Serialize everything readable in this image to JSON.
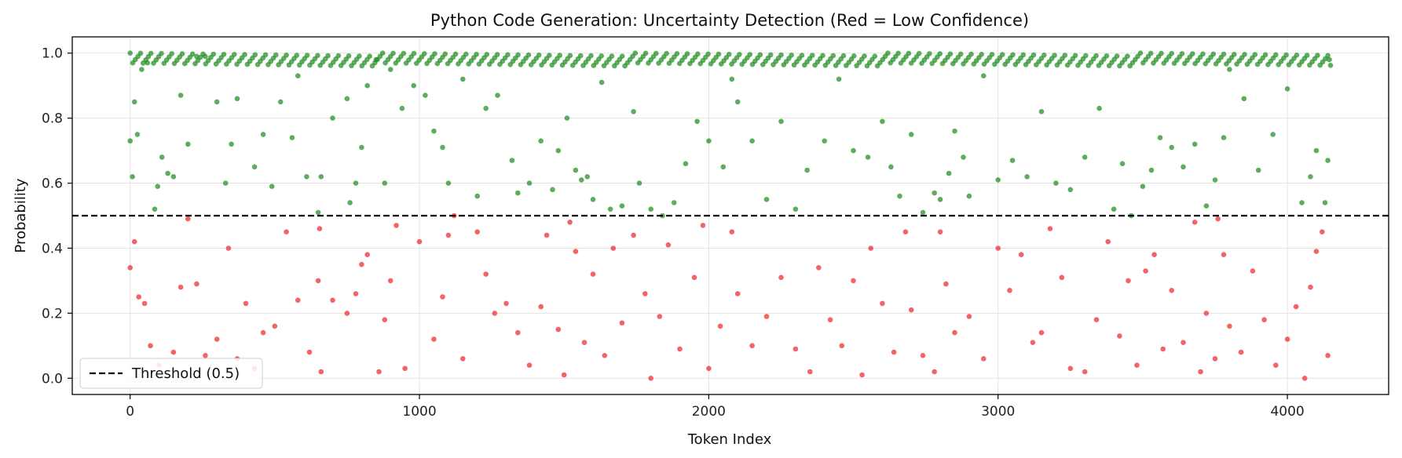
{
  "chart_data": {
    "type": "scatter",
    "title": "Python Code Generation: Uncertainty Detection (Red = Low Confidence)",
    "xlabel": "Token Index",
    "ylabel": "Probability",
    "xlim": [
      -200,
      4350
    ],
    "ylim": [
      -0.05,
      1.05
    ],
    "xticks": [
      0,
      1000,
      2000,
      3000,
      4000
    ],
    "xtick_labels": [
      "0",
      "1000",
      "2000",
      "3000",
      "4000"
    ],
    "yticks": [
      0.0,
      0.2,
      0.4,
      0.6,
      0.8,
      1.0
    ],
    "ytick_labels": [
      "0.0",
      "0.2",
      "0.4",
      "0.6",
      "0.8",
      "1.0"
    ],
    "grid": true,
    "threshold": {
      "value": 0.5,
      "label": "Threshold (0.5)",
      "style": "dashed",
      "color": "#000000"
    },
    "legend": {
      "position": "lower-left",
      "entries": [
        "Threshold (0.5)"
      ]
    },
    "colors": {
      "high": "#1a8a1a",
      "low": "#ee2222"
    },
    "token_count": 4150,
    "series": [
      {
        "name": "",
        "color": "#1a8a1a",
        "points": [
          [
            0,
            0.73
          ],
          [
            8,
            0.62
          ],
          [
            15,
            0.85
          ],
          [
            25,
            0.75
          ],
          [
            40,
            0.95
          ],
          [
            60,
            0.97
          ],
          [
            85,
            0.52
          ],
          [
            95,
            0.59
          ],
          [
            110,
            0.68
          ],
          [
            130,
            0.63
          ],
          [
            150,
            0.62
          ],
          [
            175,
            0.87
          ],
          [
            200,
            0.72
          ],
          [
            230,
            0.99
          ],
          [
            260,
            0.99
          ],
          [
            300,
            0.85
          ],
          [
            330,
            0.6
          ],
          [
            350,
            0.72
          ],
          [
            370,
            0.86
          ],
          [
            430,
            0.65
          ],
          [
            460,
            0.75
          ],
          [
            490,
            0.59
          ],
          [
            520,
            0.85
          ],
          [
            560,
            0.74
          ],
          [
            580,
            0.93
          ],
          [
            610,
            0.62
          ],
          [
            650,
            0.51
          ],
          [
            660,
            0.62
          ],
          [
            700,
            0.8
          ],
          [
            750,
            0.86
          ],
          [
            760,
            0.54
          ],
          [
            780,
            0.6
          ],
          [
            800,
            0.71
          ],
          [
            820,
            0.9
          ],
          [
            850,
            0.98
          ],
          [
            880,
            0.6
          ],
          [
            900,
            0.95
          ],
          [
            940,
            0.83
          ],
          [
            980,
            0.9
          ],
          [
            1020,
            0.87
          ],
          [
            1050,
            0.76
          ],
          [
            1080,
            0.71
          ],
          [
            1100,
            0.6
          ],
          [
            1150,
            0.92
          ],
          [
            1200,
            0.56
          ],
          [
            1230,
            0.83
          ],
          [
            1270,
            0.87
          ],
          [
            1320,
            0.67
          ],
          [
            1340,
            0.57
          ],
          [
            1380,
            0.6
          ],
          [
            1420,
            0.73
          ],
          [
            1460,
            0.58
          ],
          [
            1480,
            0.7
          ],
          [
            1510,
            0.8
          ],
          [
            1540,
            0.64
          ],
          [
            1560,
            0.61
          ],
          [
            1580,
            0.62
          ],
          [
            1600,
            0.55
          ],
          [
            1630,
            0.91
          ],
          [
            1660,
            0.52
          ],
          [
            1700,
            0.53
          ],
          [
            1740,
            0.82
          ],
          [
            1760,
            0.6
          ],
          [
            1800,
            0.52
          ],
          [
            1840,
            0.5
          ],
          [
            1880,
            0.54
          ],
          [
            1920,
            0.66
          ],
          [
            1960,
            0.79
          ],
          [
            2000,
            0.73
          ],
          [
            2050,
            0.65
          ],
          [
            2080,
            0.92
          ],
          [
            2100,
            0.85
          ],
          [
            2150,
            0.73
          ],
          [
            2200,
            0.55
          ],
          [
            2250,
            0.79
          ],
          [
            2300,
            0.52
          ],
          [
            2340,
            0.64
          ],
          [
            2400,
            0.73
          ],
          [
            2450,
            0.92
          ],
          [
            2500,
            0.7
          ],
          [
            2550,
            0.68
          ],
          [
            2600,
            0.79
          ],
          [
            2630,
            0.65
          ],
          [
            2660,
            0.56
          ],
          [
            2700,
            0.75
          ],
          [
            2740,
            0.51
          ],
          [
            2780,
            0.57
          ],
          [
            2800,
            0.55
          ],
          [
            2830,
            0.63
          ],
          [
            2850,
            0.76
          ],
          [
            2880,
            0.68
          ],
          [
            2900,
            0.56
          ],
          [
            2950,
            0.93
          ],
          [
            3000,
            0.61
          ],
          [
            3050,
            0.67
          ],
          [
            3100,
            0.62
          ],
          [
            3150,
            0.82
          ],
          [
            3200,
            0.6
          ],
          [
            3250,
            0.58
          ],
          [
            3300,
            0.68
          ],
          [
            3350,
            0.83
          ],
          [
            3400,
            0.52
          ],
          [
            3430,
            0.66
          ],
          [
            3460,
            0.5
          ],
          [
            3500,
            0.59
          ],
          [
            3530,
            0.64
          ],
          [
            3560,
            0.74
          ],
          [
            3600,
            0.71
          ],
          [
            3640,
            0.65
          ],
          [
            3680,
            0.72
          ],
          [
            3720,
            0.53
          ],
          [
            3750,
            0.61
          ],
          [
            3780,
            0.74
          ],
          [
            3800,
            0.95
          ],
          [
            3850,
            0.86
          ],
          [
            3900,
            0.64
          ],
          [
            3950,
            0.75
          ],
          [
            4000,
            0.89
          ],
          [
            4050,
            0.54
          ],
          [
            4080,
            0.62
          ],
          [
            4100,
            0.7
          ],
          [
            4130,
            0.54
          ],
          [
            4140,
            0.67
          ],
          [
            4145,
            0.98
          ]
        ]
      },
      {
        "name": "",
        "color": "#ee2222",
        "points": [
          [
            0,
            0.34
          ],
          [
            15,
            0.42
          ],
          [
            30,
            0.25
          ],
          [
            50,
            0.23
          ],
          [
            70,
            0.1
          ],
          [
            100,
            0.04
          ],
          [
            150,
            0.08
          ],
          [
            175,
            0.28
          ],
          [
            200,
            0.49
          ],
          [
            230,
            0.29
          ],
          [
            260,
            0.07
          ],
          [
            300,
            0.12
          ],
          [
            340,
            0.4
          ],
          [
            370,
            0.06
          ],
          [
            400,
            0.23
          ],
          [
            430,
            0.03
          ],
          [
            460,
            0.14
          ],
          [
            500,
            0.16
          ],
          [
            540,
            0.45
          ],
          [
            580,
            0.24
          ],
          [
            620,
            0.08
          ],
          [
            650,
            0.3
          ],
          [
            655,
            0.46
          ],
          [
            660,
            0.02
          ],
          [
            700,
            0.24
          ],
          [
            750,
            0.2
          ],
          [
            780,
            0.26
          ],
          [
            800,
            0.35
          ],
          [
            820,
            0.38
          ],
          [
            860,
            0.02
          ],
          [
            880,
            0.18
          ],
          [
            900,
            0.3
          ],
          [
            920,
            0.47
          ],
          [
            950,
            0.03
          ],
          [
            1000,
            0.42
          ],
          [
            1050,
            0.12
          ],
          [
            1080,
            0.25
          ],
          [
            1100,
            0.44
          ],
          [
            1120,
            0.5
          ],
          [
            1150,
            0.06
          ],
          [
            1200,
            0.45
          ],
          [
            1230,
            0.32
          ],
          [
            1260,
            0.2
          ],
          [
            1300,
            0.23
          ],
          [
            1340,
            0.14
          ],
          [
            1380,
            0.04
          ],
          [
            1420,
            0.22
          ],
          [
            1440,
            0.44
          ],
          [
            1480,
            0.15
          ],
          [
            1500,
            0.01
          ],
          [
            1520,
            0.48
          ],
          [
            1540,
            0.39
          ],
          [
            1570,
            0.11
          ],
          [
            1600,
            0.32
          ],
          [
            1640,
            0.07
          ],
          [
            1670,
            0.4
          ],
          [
            1700,
            0.17
          ],
          [
            1740,
            0.44
          ],
          [
            1780,
            0.26
          ],
          [
            1800,
            0.0
          ],
          [
            1830,
            0.19
          ],
          [
            1860,
            0.41
          ],
          [
            1900,
            0.09
          ],
          [
            1950,
            0.31
          ],
          [
            1980,
            0.47
          ],
          [
            2000,
            0.03
          ],
          [
            2040,
            0.16
          ],
          [
            2080,
            0.45
          ],
          [
            2100,
            0.26
          ],
          [
            2150,
            0.1
          ],
          [
            2200,
            0.19
          ],
          [
            2250,
            0.31
          ],
          [
            2300,
            0.09
          ],
          [
            2350,
            0.02
          ],
          [
            2380,
            0.34
          ],
          [
            2420,
            0.18
          ],
          [
            2460,
            0.1
          ],
          [
            2500,
            0.3
          ],
          [
            2530,
            0.01
          ],
          [
            2560,
            0.4
          ],
          [
            2600,
            0.23
          ],
          [
            2640,
            0.08
          ],
          [
            2680,
            0.45
          ],
          [
            2700,
            0.21
          ],
          [
            2740,
            0.07
          ],
          [
            2780,
            0.02
          ],
          [
            2800,
            0.45
          ],
          [
            2820,
            0.29
          ],
          [
            2850,
            0.14
          ],
          [
            2900,
            0.19
          ],
          [
            2950,
            0.06
          ],
          [
            3000,
            0.4
          ],
          [
            3040,
            0.27
          ],
          [
            3080,
            0.38
          ],
          [
            3120,
            0.11
          ],
          [
            3150,
            0.14
          ],
          [
            3180,
            0.46
          ],
          [
            3220,
            0.31
          ],
          [
            3250,
            0.03
          ],
          [
            3300,
            0.02
          ],
          [
            3340,
            0.18
          ],
          [
            3380,
            0.42
          ],
          [
            3420,
            0.13
          ],
          [
            3450,
            0.3
          ],
          [
            3480,
            0.04
          ],
          [
            3510,
            0.33
          ],
          [
            3540,
            0.38
          ],
          [
            3570,
            0.09
          ],
          [
            3600,
            0.27
          ],
          [
            3640,
            0.11
          ],
          [
            3680,
            0.48
          ],
          [
            3700,
            0.02
          ],
          [
            3720,
            0.2
          ],
          [
            3750,
            0.06
          ],
          [
            3760,
            0.49
          ],
          [
            3780,
            0.38
          ],
          [
            3800,
            0.16
          ],
          [
            3840,
            0.08
          ],
          [
            3880,
            0.33
          ],
          [
            3920,
            0.18
          ],
          [
            3960,
            0.04
          ],
          [
            4000,
            0.12
          ],
          [
            4030,
            0.22
          ],
          [
            4060,
            0.0
          ],
          [
            4080,
            0.28
          ],
          [
            4100,
            0.39
          ],
          [
            4120,
            0.45
          ],
          [
            4140,
            0.07
          ]
        ]
      }
    ]
  }
}
